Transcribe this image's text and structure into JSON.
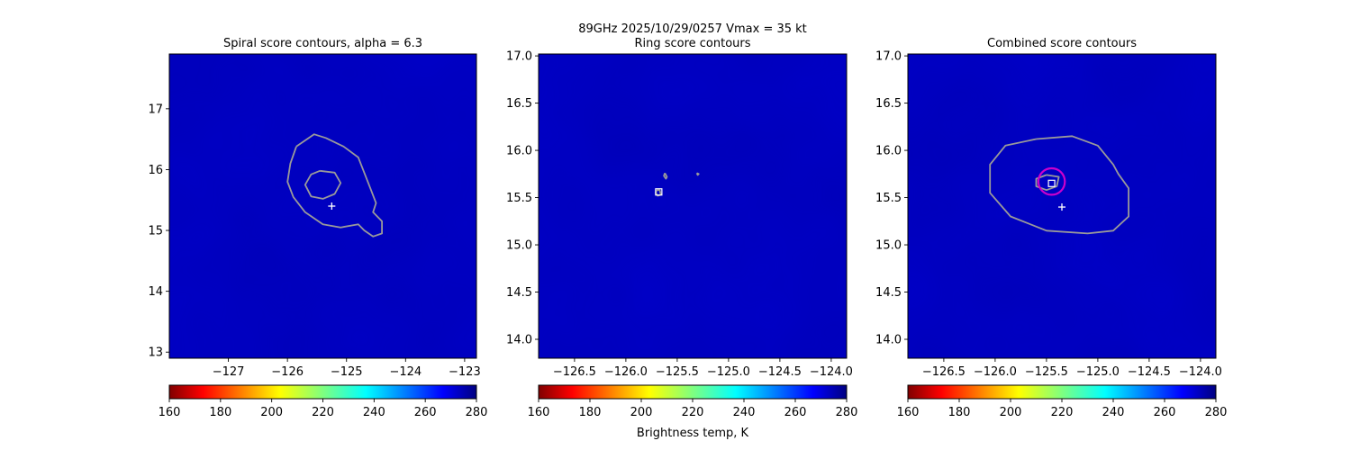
{
  "figure": {
    "suptitle_line1": "89GHz  2025/10/29/0257    Vmax = 35 kt",
    "colorbar_label": "Brightness temp, K"
  },
  "colors": {
    "field_low": "#0000c8",
    "field_high": "#00007e",
    "spiral_contour": "#9a9a9a",
    "ring_marker": "#cc00cc",
    "center_marker": "#ffffff"
  },
  "chart_data": [
    {
      "type": "heatmap",
      "title": "Spiral score contours, alpha =  6.3",
      "colormap": "jet_r",
      "xlim": [
        -128.0,
        -122.8
      ],
      "ylim": [
        12.9,
        17.9
      ],
      "xticks": [
        -127,
        -126,
        -125,
        -124,
        -123
      ],
      "xtick_labels": [
        "−127",
        "−126",
        "−125",
        "−124",
        "−123"
      ],
      "yticks": [
        13,
        14,
        15,
        16,
        17
      ],
      "ytick_labels": [
        "13",
        "14",
        "15",
        "16",
        "17"
      ],
      "contours": [
        {
          "name": "outer",
          "x": [
            -125.85,
            -125.55,
            -125.35,
            -125.05,
            -124.8,
            -124.7,
            -124.6,
            -124.5,
            -124.55,
            -124.4,
            -124.4,
            -124.55,
            -124.7,
            -124.8,
            -125.1,
            -125.4,
            -125.7,
            -125.9,
            -126.0,
            -125.95,
            -125.85
          ],
          "y": [
            16.38,
            16.58,
            16.52,
            16.38,
            16.2,
            15.95,
            15.7,
            15.45,
            15.3,
            15.15,
            14.95,
            14.9,
            15.0,
            15.1,
            15.05,
            15.1,
            15.3,
            15.55,
            15.8,
            16.1,
            16.38
          ]
        },
        {
          "name": "inner",
          "x": [
            -125.45,
            -125.2,
            -125.1,
            -125.2,
            -125.4,
            -125.6,
            -125.7,
            -125.6,
            -125.45
          ],
          "y": [
            15.98,
            15.95,
            15.78,
            15.6,
            15.52,
            15.56,
            15.75,
            15.92,
            15.98
          ]
        }
      ],
      "markers": [
        {
          "kind": "plus",
          "x": -125.25,
          "y": 15.4
        }
      ]
    },
    {
      "type": "heatmap",
      "title": "Ring score contours",
      "colormap": "jet_r",
      "xlim": [
        -126.85,
        -123.85
      ],
      "ylim": [
        13.8,
        17.02
      ],
      "xticks": [
        -126.5,
        -126.0,
        -125.5,
        -125.0,
        -124.5,
        -124.0
      ],
      "xtick_labels": [
        "−126.5",
        "−126.0",
        "−125.5",
        "−125.0",
        "−124.5",
        "−124.0"
      ],
      "yticks": [
        14.0,
        14.5,
        15.0,
        15.5,
        16.0,
        16.5,
        17.0
      ],
      "ytick_labels": [
        "14.0",
        "14.5",
        "15.0",
        "15.5",
        "16.0",
        "16.5",
        "17.0"
      ],
      "contours": [
        {
          "name": "small-1",
          "x": [
            -125.62,
            -125.6,
            -125.61,
            -125.63,
            -125.62
          ],
          "y": [
            15.76,
            15.72,
            15.7,
            15.73,
            15.76
          ]
        },
        {
          "name": "small-2",
          "x": [
            -125.31,
            -125.29,
            -125.3,
            -125.31
          ],
          "y": [
            15.76,
            15.75,
            15.74,
            15.76
          ]
        },
        {
          "name": "small-3",
          "x": [
            -125.7,
            -125.67,
            -125.66,
            -125.69,
            -125.71,
            -125.7
          ],
          "y": [
            15.58,
            15.58,
            15.53,
            15.52,
            15.55,
            15.58
          ]
        }
      ],
      "markers": [
        {
          "kind": "square",
          "x": -125.68,
          "y": 15.56
        }
      ]
    },
    {
      "type": "heatmap",
      "title": "Combined score contours",
      "colormap": "jet_r",
      "xlim": [
        -126.85,
        -123.85
      ],
      "ylim": [
        13.8,
        17.02
      ],
      "xticks": [
        -126.5,
        -126.0,
        -125.5,
        -125.0,
        -124.5,
        -124.0
      ],
      "xtick_labels": [
        "−126.5",
        "−126.0",
        "−125.5",
        "−125.0",
        "−124.5",
        "−124.0"
      ],
      "yticks": [
        14.0,
        14.5,
        15.0,
        15.5,
        16.0,
        16.5,
        17.0
      ],
      "ytick_labels": [
        "14.0",
        "14.5",
        "15.0",
        "15.5",
        "16.0",
        "16.5",
        "17.0"
      ],
      "contours": [
        {
          "name": "outer",
          "x": [
            -125.6,
            -125.25,
            -125.0,
            -124.85,
            -124.8,
            -124.7,
            -124.7,
            -124.85,
            -125.1,
            -125.5,
            -125.85,
            -126.05,
            -126.05,
            -125.9,
            -125.6
          ],
          "y": [
            16.12,
            16.15,
            16.05,
            15.85,
            15.75,
            15.6,
            15.3,
            15.15,
            15.12,
            15.15,
            15.3,
            15.55,
            15.85,
            16.05,
            16.12
          ]
        },
        {
          "name": "inner",
          "x": [
            -125.5,
            -125.38,
            -125.4,
            -125.5,
            -125.6,
            -125.6,
            -125.5
          ],
          "y": [
            15.74,
            15.72,
            15.62,
            15.58,
            15.62,
            15.7,
            15.74
          ]
        }
      ],
      "markers": [
        {
          "kind": "ring",
          "x": -125.45,
          "y": 15.67,
          "radius_deg": 0.14
        },
        {
          "kind": "square",
          "x": -125.45,
          "y": 15.65
        },
        {
          "kind": "plus",
          "x": -125.35,
          "y": 15.4
        }
      ]
    }
  ],
  "colorbar": {
    "min": 160,
    "max": 280,
    "ticks": [
      "160",
      "180",
      "200",
      "220",
      "240",
      "260",
      "280"
    ]
  }
}
